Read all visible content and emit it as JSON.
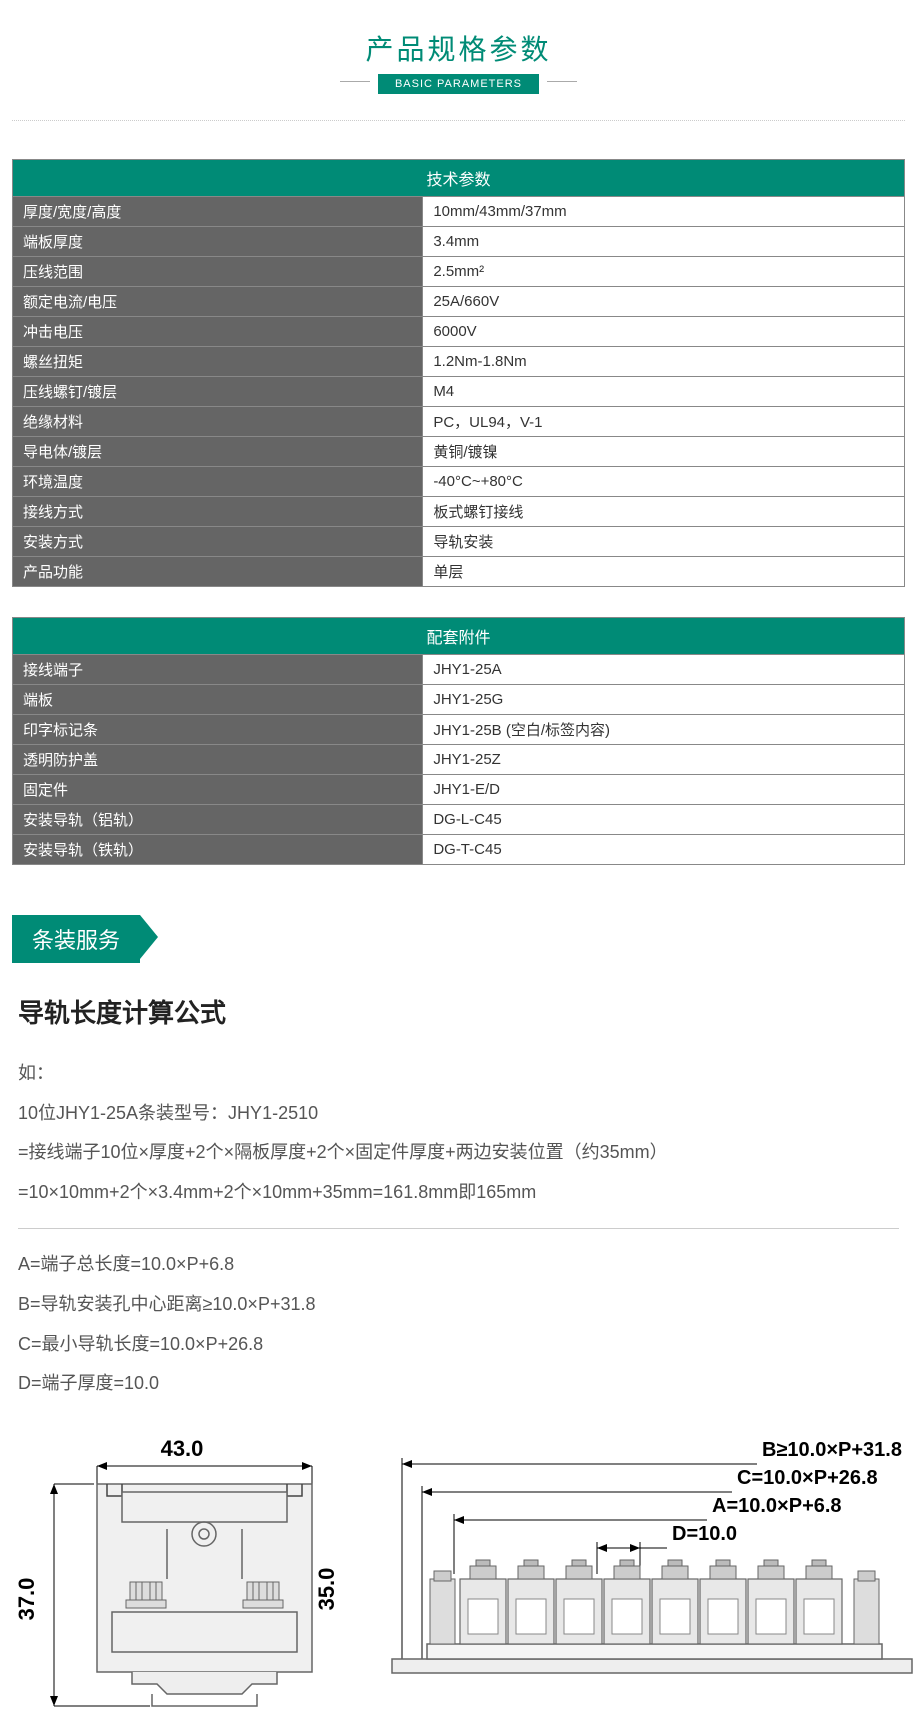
{
  "header": {
    "title": "产品规格参数",
    "subtitle": "BASIC PARAMETERS"
  },
  "colors": {
    "primary": "#008b76",
    "grayBg": "#656565",
    "border": "#888",
    "text": "#333",
    "mutedText": "#555"
  },
  "table1": {
    "title": "技术参数",
    "rows": [
      {
        "label": "厚度/宽度/高度",
        "value": "10mm/43mm/37mm"
      },
      {
        "label": "端板厚度",
        "value": "3.4mm"
      },
      {
        "label": "压线范围",
        "value": "2.5mm²"
      },
      {
        "label": "额定电流/电压",
        "value": "25A/660V"
      },
      {
        "label": "冲击电压",
        "value": "6000V"
      },
      {
        "label": "螺丝扭矩",
        "value": "1.2Nm-1.8Nm"
      },
      {
        "label": "压线螺钉/镀层",
        "value": "M4"
      },
      {
        "label": "绝缘材料",
        "value": "PC，UL94，V-1"
      },
      {
        "label": "导电体/镀层",
        "value": "黄铜/镀镍"
      },
      {
        "label": "环境温度",
        "value": "-40°C~+80°C"
      },
      {
        "label": "接线方式",
        "value": "板式螺钉接线"
      },
      {
        "label": "安装方式",
        "value": "导轨安装"
      },
      {
        "label": "产品功能",
        "value": "单层"
      }
    ]
  },
  "table2": {
    "title": "配套附件",
    "rows": [
      {
        "label": "接线端子",
        "value": "JHY1-25A"
      },
      {
        "label": "端板",
        "value": "JHY1-25G"
      },
      {
        "label": "印字标记条",
        "value": "JHY1-25B (空白/标签内容)"
      },
      {
        "label": "透明防护盖",
        "value": "JHY1-25Z"
      },
      {
        "label": "固定件",
        "value": "JHY1-E/D"
      },
      {
        "label": "安装导轨（铝轨）",
        "value": "DG-L-C45"
      },
      {
        "label": "安装导轨（铁轨）",
        "value": "DG-T-C45"
      }
    ]
  },
  "sectionTag": "条装服务",
  "formula": {
    "title": "导轨长度计算公式",
    "intro": "如：",
    "example1": "10位JHY1-25A条装型号：JHY1-2510",
    "example2": "=接线端子10位×厚度+2个×隔板厚度+2个×固定件厚度+两边安装位置（约35mm）",
    "example3": "=10×10mm+2个×3.4mm+2个×10mm+35mm=161.8mm即165mm",
    "lineA": "A=端子总长度=10.0×P+6.8",
    "lineB": "B=导轨安装孔中心距离≥10.0×P+31.8",
    "lineC": "C=最小导轨长度=10.0×P+26.8",
    "lineD": "D=端子厚度=10.0"
  },
  "diagram": {
    "width_label": "43.0",
    "height_label": "37.0",
    "inner_height_label": "35.0",
    "right_labels": {
      "B": "B≥10.0×P+31.8",
      "C": "C=10.0×P+26.8",
      "A": "A=10.0×P+6.8",
      "D": "D=10.0"
    },
    "terminal_count": 8
  }
}
